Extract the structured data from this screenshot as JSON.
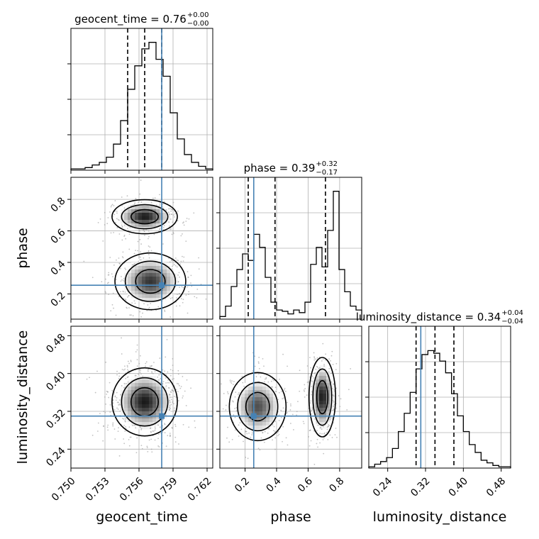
{
  "chart_data": {
    "type": "corner",
    "parameters": [
      "geocent_time",
      "phase",
      "luminosity_distance"
    ],
    "titles": [
      {
        "name": "geocent_time",
        "value": "0.76",
        "plus": "+0.00",
        "minus": "−0.00"
      },
      {
        "name": "phase",
        "value": "0.39",
        "plus": "+0.32",
        "minus": "−0.17"
      },
      {
        "name": "luminosity_distance",
        "value": "0.34",
        "plus": "+0.04",
        "minus": "−0.04"
      }
    ],
    "ranges": [
      [
        0.75,
        0.7625
      ],
      [
        0.04,
        0.94
      ],
      [
        0.2,
        0.5
      ]
    ],
    "ticks": [
      {
        "values": [
          0.75,
          0.753,
          0.756,
          0.759,
          0.762
        ],
        "labels": [
          "0.750",
          "0.753",
          "0.756",
          "0.759",
          "0.762"
        ]
      },
      {
        "values": [
          0.2,
          0.4,
          0.6,
          0.8
        ],
        "labels": [
          "0.2",
          "0.4",
          "0.6",
          "0.8"
        ]
      },
      {
        "values": [
          0.24,
          0.32,
          0.4,
          0.48
        ],
        "labels": [
          "0.24",
          "0.32",
          "0.40",
          "0.48"
        ]
      }
    ],
    "truths": [
      0.758,
      0.255,
      0.31
    ],
    "truth_color": "#4682b4",
    "quantiles": [
      [
        0.755,
        0.7565,
        0.758
      ],
      [
        0.22,
        0.39,
        0.71
      ],
      [
        0.3,
        0.34,
        0.38
      ]
    ],
    "histograms": [
      {
        "edges_range": [
          0.75,
          0.7625
        ],
        "counts": [
          0.01,
          0.01,
          0.02,
          0.04,
          0.06,
          0.1,
          0.2,
          0.38,
          0.62,
          0.8,
          0.93,
          0.98,
          0.85,
          0.72,
          0.44,
          0.24,
          0.12,
          0.06,
          0.03,
          0.01
        ]
      },
      {
        "edges_range": [
          0.04,
          0.94
        ],
        "counts": [
          0.02,
          0.1,
          0.25,
          0.38,
          0.5,
          0.45,
          0.65,
          0.55,
          0.32,
          0.13,
          0.07,
          0.06,
          0.04,
          0.07,
          0.05,
          0.13,
          0.42,
          0.55,
          0.4,
          0.68,
          0.98,
          0.38,
          0.21,
          0.1,
          0.07
        ]
      },
      {
        "edges_range": [
          0.2,
          0.5
        ],
        "counts": [
          0.01,
          0.03,
          0.05,
          0.08,
          0.15,
          0.28,
          0.42,
          0.58,
          0.76,
          0.87,
          0.9,
          0.88,
          0.82,
          0.73,
          0.57,
          0.4,
          0.28,
          0.18,
          0.12,
          0.06,
          0.04,
          0.02,
          0.01,
          0.01
        ]
      }
    ],
    "modes_2d": {
      "phase_vs_geocent_time": [
        {
          "x": 0.7565,
          "y": 0.69,
          "sx": 0.0012,
          "sy": 0.045,
          "weight": 1.0
        },
        {
          "x": 0.757,
          "y": 0.28,
          "sx": 0.0013,
          "sy": 0.075,
          "weight": 0.9
        }
      ],
      "luminosity_distance_vs_geocent_time": [
        {
          "x": 0.7565,
          "y": 0.34,
          "sx": 0.0012,
          "sy": 0.03,
          "weight": 1.0
        }
      ],
      "luminosity_distance_vs_phase": [
        {
          "x": 0.28,
          "y": 0.33,
          "sx": 0.075,
          "sy": 0.03,
          "weight": 0.8
        },
        {
          "x": 0.69,
          "y": 0.35,
          "sx": 0.035,
          "sy": 0.035,
          "weight": 1.0
        }
      ]
    },
    "grid": true,
    "xlabel_rotation_deg": 45
  }
}
